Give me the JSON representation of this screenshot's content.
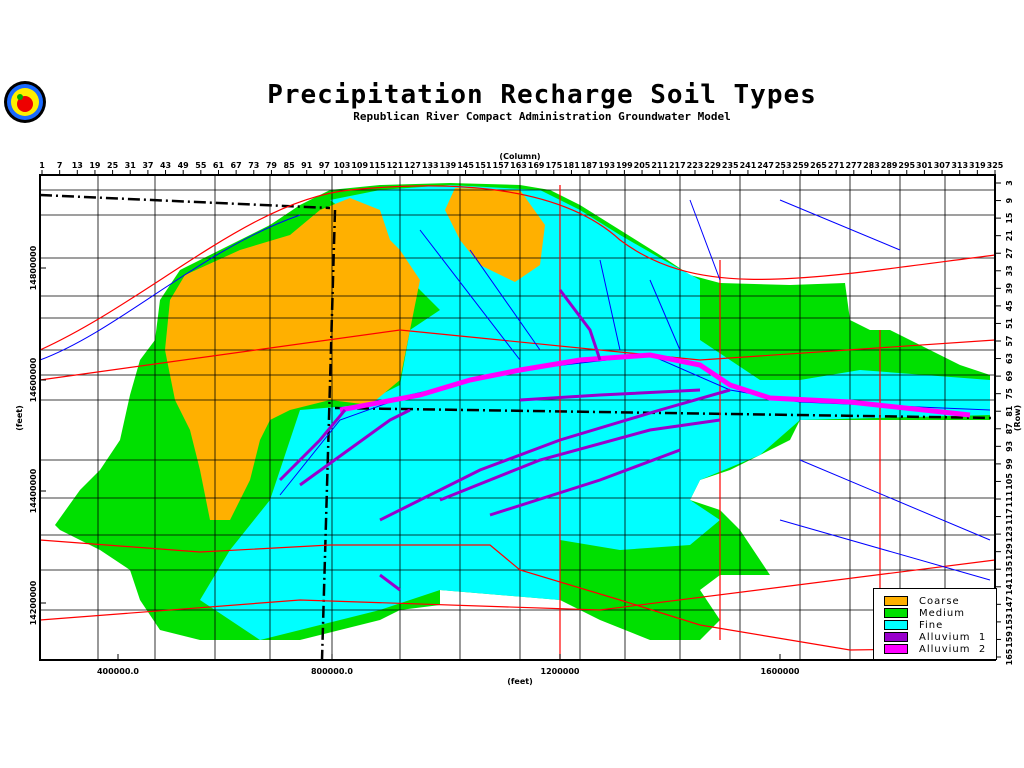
{
  "header": {
    "title": "Precipitation Recharge Soil Types",
    "subtitle": "Republican River Compact Administration Groundwater Model"
  },
  "logo": {
    "icon": "apple-seal-logo"
  },
  "axes": {
    "top_label": "(Column)",
    "columns": [
      "1",
      "7",
      "13",
      "19",
      "25",
      "31",
      "37",
      "43",
      "49",
      "55",
      "61",
      "67",
      "73",
      "79",
      "85",
      "91",
      "97",
      "103",
      "109",
      "115",
      "121",
      "127",
      "133",
      "139",
      "145",
      "151",
      "157",
      "163",
      "169",
      "175",
      "181",
      "187",
      "193",
      "199",
      "205",
      "211",
      "217",
      "223",
      "229",
      "235",
      "241",
      "247",
      "253",
      "259",
      "265",
      "271",
      "277",
      "283",
      "289",
      "295",
      "301",
      "307",
      "313",
      "319",
      "325"
    ],
    "right_label": "(Row)",
    "rows": [
      "3",
      "9",
      "15",
      "21",
      "27",
      "33",
      "39",
      "45",
      "51",
      "57",
      "63",
      "69",
      "75",
      "81",
      "87",
      "93",
      "99",
      "105",
      "111",
      "117",
      "123",
      "129",
      "135",
      "141",
      "147",
      "153",
      "159",
      "165"
    ],
    "left_label": "(feet)",
    "left_ticks": [
      "14800000",
      "14600000",
      "14400000",
      "14200000"
    ],
    "bottom_label": "(feet)",
    "bottom_ticks": [
      "400000.0",
      "800000.0",
      "1200000",
      "1600000"
    ]
  },
  "legend": {
    "items": [
      {
        "label": "Coarse",
        "color": "#FFB000"
      },
      {
        "label": "Medium",
        "color": "#00E000"
      },
      {
        "label": "Fine",
        "color": "#00FFFF"
      },
      {
        "label": "Alluvium  1",
        "color": "#9900CC"
      },
      {
        "label": "Alluvium  2",
        "color": "#FF00FF"
      }
    ]
  },
  "colors": {
    "river": "#0000FF",
    "road": "#FF0000",
    "state_boundary": "#000000"
  }
}
